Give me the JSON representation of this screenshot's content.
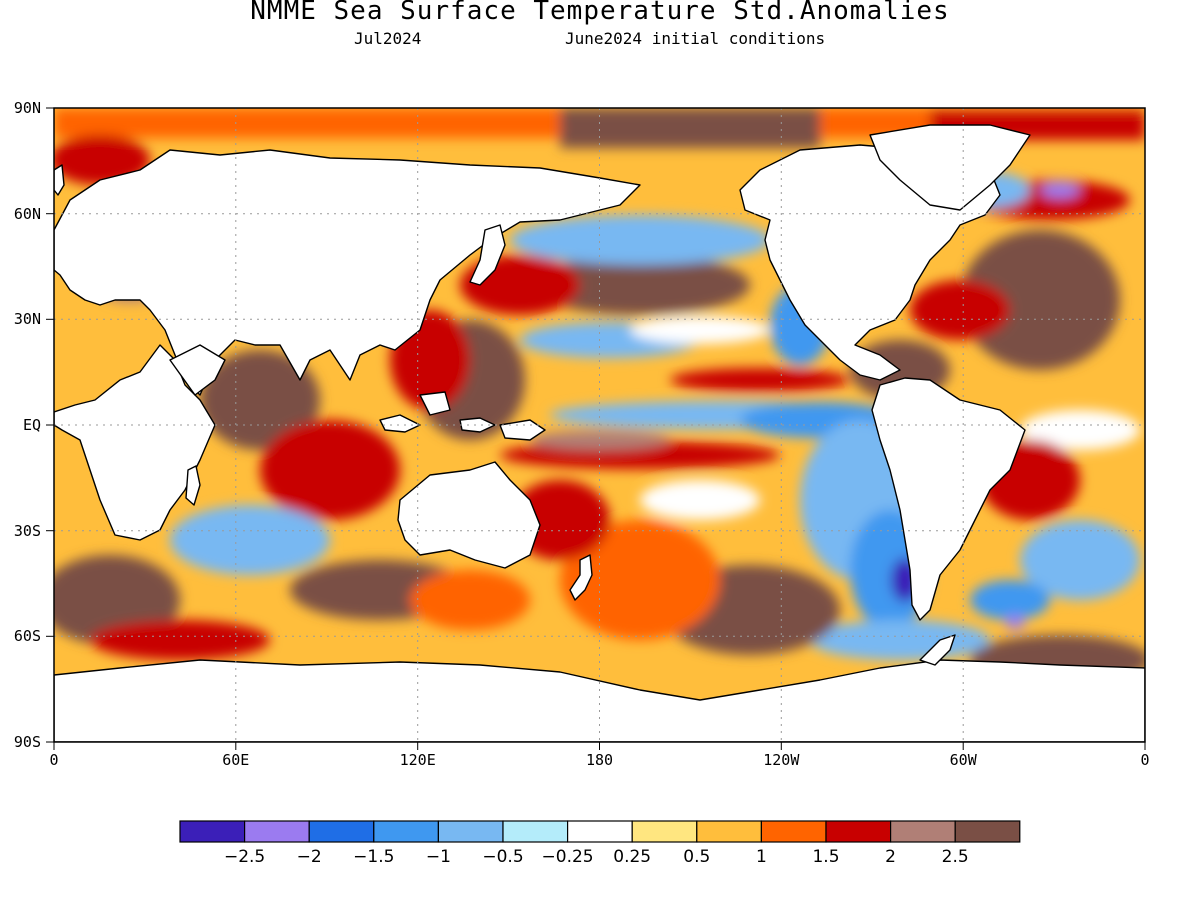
{
  "header": {
    "title": "NMME Sea Surface Temperature Std.Anomalies",
    "target_month": "Jul2024",
    "init_conditions": "June2024 initial conditions"
  },
  "axes": {
    "lat_labels": [
      "90N",
      "60N",
      "30N",
      "EQ",
      "30S",
      "60S",
      "90S"
    ],
    "lon_labels": [
      "0",
      "60E",
      "120E",
      "180",
      "120W",
      "60W",
      "0"
    ]
  },
  "colorbar": {
    "colors": [
      "#3b1fb8",
      "#9b7bf0",
      "#1f6ee6",
      "#3f98f0",
      "#78b8f2",
      "#b4ecfa",
      "#ffffff",
      "#ffe680",
      "#ffbe3c",
      "#ff6400",
      "#c80000",
      "#b07f76",
      "#7a4f45"
    ],
    "labels": [
      "−2.5",
      "−2",
      "−1.5",
      "−1",
      "−0.5",
      "−0.25",
      "0.25",
      "0.5",
      "1",
      "1.5",
      "2",
      "2.5"
    ]
  },
  "map_colors": {
    "land": "#ffffff",
    "coast": "#000000",
    "grid": "#9a9a9a"
  }
}
